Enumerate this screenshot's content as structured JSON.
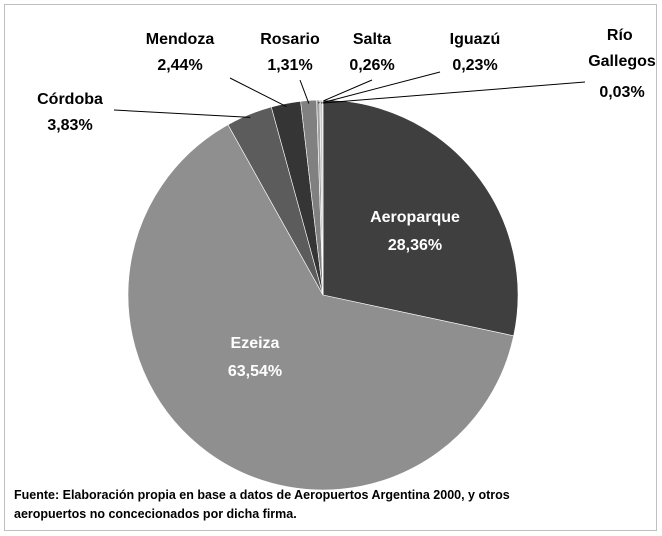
{
  "chart_data": {
    "type": "pie",
    "categories": [
      "Aeroparque",
      "Ezeiza",
      "Córdoba",
      "Mendoza",
      "Rosario",
      "Salta",
      "Iguazú",
      "Río Gallegos"
    ],
    "values": [
      28.36,
      63.54,
      3.83,
      2.44,
      1.31,
      0.26,
      0.23,
      0.03
    ],
    "value_labels": [
      "28,36%",
      "63,54%",
      "3,83%",
      "2,44%",
      "1,31%",
      "0,26%",
      "0,23%",
      "0,03%"
    ],
    "colors": [
      "#3f3f3f",
      "#8f8f8f",
      "#5c5c5c",
      "#353535",
      "#808080",
      "#a0a0a0",
      "#c8c8c8",
      "#606060"
    ],
    "source": [
      "Fuente: Elaboración propia en base a datos de Aeropuertos Argentina 2000,  y otros",
      "aeropuertos no concecionados por dicha firma."
    ]
  }
}
